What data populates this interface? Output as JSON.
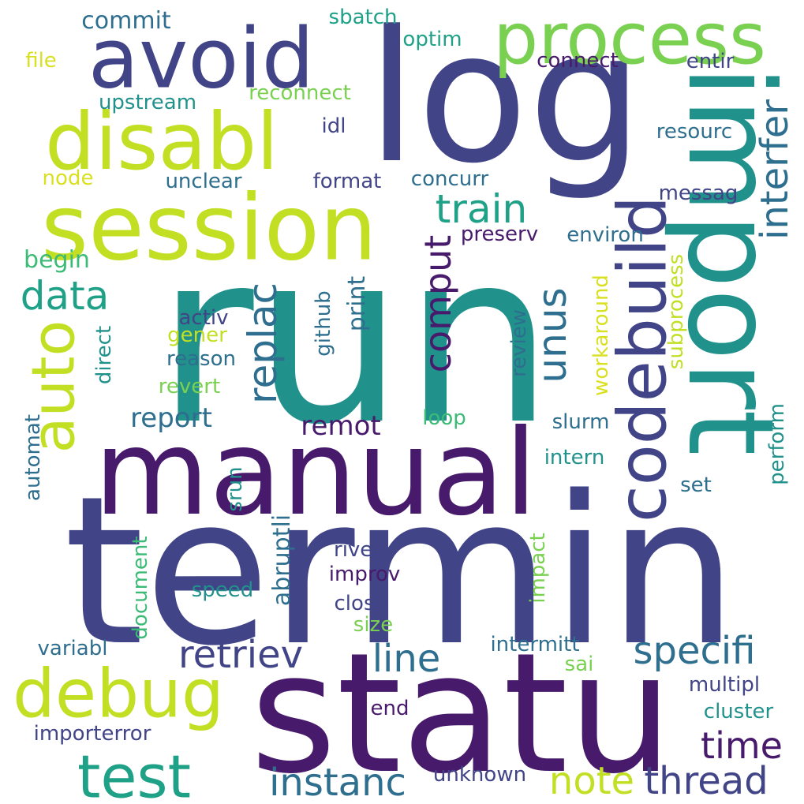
{
  "cloud": {
    "colors": {
      "background": "#ffffff",
      "dark_purple": "#481a6c",
      "indigo": "#414487",
      "slate_blue": "#3a548c",
      "steel_blue": "#2e6e8e",
      "teal": "#21918c",
      "sea_green": "#1fa187",
      "green": "#3bbb75",
      "light_green": "#7ad151",
      "lime": "#c2df23",
      "yellow": "#d9e021"
    },
    "words": [
      {
        "text": "run",
        "color": "#21918c",
        "size": 300,
        "rotate": 0
      },
      {
        "text": "termin",
        "color": "#414487",
        "size": 260,
        "rotate": 0
      },
      {
        "text": "log",
        "color": "#414487",
        "size": 230,
        "rotate": 0
      },
      {
        "text": "statu",
        "color": "#481a6c",
        "size": 210,
        "rotate": 0
      },
      {
        "text": "import",
        "color": "#21918c",
        "size": 150,
        "rotate": 90
      },
      {
        "text": "manual",
        "color": "#481a6c",
        "size": 150,
        "rotate": 0
      },
      {
        "text": "session",
        "color": "#c2df23",
        "size": 115,
        "rotate": 0
      },
      {
        "text": "avoid",
        "color": "#414487",
        "size": 105,
        "rotate": 0
      },
      {
        "text": "disabl",
        "color": "#c2df23",
        "size": 100,
        "rotate": 0
      },
      {
        "text": "process",
        "color": "#7ad151",
        "size": 90,
        "rotate": 0
      },
      {
        "text": "codebuild",
        "color": "#414487",
        "size": 85,
        "rotate": 270
      },
      {
        "text": "debug",
        "color": "#c2df23",
        "size": 85,
        "rotate": 0
      },
      {
        "text": "auto",
        "color": "#c2df23",
        "size": 75,
        "rotate": 270
      },
      {
        "text": "test",
        "color": "#1fa187",
        "size": 75,
        "rotate": 0
      },
      {
        "text": "replac",
        "color": "#2e6e8e",
        "size": 50,
        "rotate": 270
      },
      {
        "text": "unus",
        "color": "#2e6e8e",
        "size": 50,
        "rotate": 270
      },
      {
        "text": "comput",
        "color": "#481a6c",
        "size": 46,
        "rotate": 270
      },
      {
        "text": "interfer",
        "color": "#2e6e8e",
        "size": 48,
        "rotate": 270
      },
      {
        "text": "train",
        "color": "#1fa187",
        "size": 50,
        "rotate": 0
      },
      {
        "text": "data",
        "color": "#1fa187",
        "size": 50,
        "rotate": 0
      },
      {
        "text": "specifi",
        "color": "#2e6e8e",
        "size": 48,
        "rotate": 0
      },
      {
        "text": "retriev",
        "color": "#414487",
        "size": 48,
        "rotate": 0
      },
      {
        "text": "line",
        "color": "#2e6e8e",
        "size": 48,
        "rotate": 0
      },
      {
        "text": "instanc",
        "color": "#2e6e8e",
        "size": 48,
        "rotate": 0
      },
      {
        "text": "note",
        "color": "#c2df23",
        "size": 48,
        "rotate": 0
      },
      {
        "text": "thread",
        "color": "#414487",
        "size": 48,
        "rotate": 0
      },
      {
        "text": "time",
        "color": "#481a6c",
        "size": 46,
        "rotate": 0
      },
      {
        "text": "report",
        "color": "#2e6e8e",
        "size": 34,
        "rotate": 0
      },
      {
        "text": "remot",
        "color": "#481a6c",
        "size": 34,
        "rotate": 0
      },
      {
        "text": "abruptli",
        "color": "#2e6e8e",
        "size": 30,
        "rotate": 270
      },
      {
        "text": "print",
        "color": "#2e6e8e",
        "size": 30,
        "rotate": 270
      },
      {
        "text": "commit",
        "color": "#2e6e8e",
        "size": 30,
        "rotate": 0
      },
      {
        "text": "begin",
        "color": "#3bbb75",
        "size": 30,
        "rotate": 0
      },
      {
        "text": "sbatch",
        "color": "#1fa187",
        "size": 26,
        "rotate": 0
      },
      {
        "text": "optim",
        "color": "#1fa187",
        "size": 26,
        "rotate": 0
      },
      {
        "text": "connect",
        "color": "#481a6c",
        "size": 26,
        "rotate": 0
      },
      {
        "text": "entir",
        "color": "#414487",
        "size": 26,
        "rotate": 0
      },
      {
        "text": "file",
        "color": "#d9e021",
        "size": 26,
        "rotate": 0
      },
      {
        "text": "upstream",
        "color": "#21918c",
        "size": 26,
        "rotate": 0
      },
      {
        "text": "reconnect",
        "color": "#7ad151",
        "size": 26,
        "rotate": 0
      },
      {
        "text": "idl",
        "color": "#414487",
        "size": 26,
        "rotate": 0
      },
      {
        "text": "resourc",
        "color": "#2e6e8e",
        "size": 26,
        "rotate": 0
      },
      {
        "text": "node",
        "color": "#d9e021",
        "size": 26,
        "rotate": 0
      },
      {
        "text": "unclear",
        "color": "#2e6e8e",
        "size": 26,
        "rotate": 0
      },
      {
        "text": "format",
        "color": "#414487",
        "size": 26,
        "rotate": 0
      },
      {
        "text": "concurr",
        "color": "#2e6e8e",
        "size": 26,
        "rotate": 0
      },
      {
        "text": "messag",
        "color": "#414487",
        "size": 26,
        "rotate": 0
      },
      {
        "text": "preserv",
        "color": "#481a6c",
        "size": 26,
        "rotate": 0
      },
      {
        "text": "environ",
        "color": "#2e6e8e",
        "size": 26,
        "rotate": 0
      },
      {
        "text": "subprocess",
        "color": "#c2df23",
        "size": 26,
        "rotate": 270
      },
      {
        "text": "workaround",
        "color": "#d9e021",
        "size": 26,
        "rotate": 270
      },
      {
        "text": "activ",
        "color": "#414487",
        "size": 26,
        "rotate": 0
      },
      {
        "text": "gener",
        "color": "#c2df23",
        "size": 26,
        "rotate": 0
      },
      {
        "text": "reason",
        "color": "#2e6e8e",
        "size": 26,
        "rotate": 0
      },
      {
        "text": "revert",
        "color": "#7ad151",
        "size": 26,
        "rotate": 0
      },
      {
        "text": "direct",
        "color": "#21918c",
        "size": 26,
        "rotate": 270
      },
      {
        "text": "github",
        "color": "#2e6e8e",
        "size": 26,
        "rotate": 270
      },
      {
        "text": "review",
        "color": "#2e6e8e",
        "size": 26,
        "rotate": 270
      },
      {
        "text": "loop",
        "color": "#3bbb75",
        "size": 26,
        "rotate": 0
      },
      {
        "text": "slurm",
        "color": "#2e6e8e",
        "size": 26,
        "rotate": 0
      },
      {
        "text": "automat",
        "color": "#2e6e8e",
        "size": 26,
        "rotate": 270
      },
      {
        "text": "srun",
        "color": "#21918c",
        "size": 26,
        "rotate": 270
      },
      {
        "text": "perform",
        "color": "#21918c",
        "size": 26,
        "rotate": 270
      },
      {
        "text": "intern",
        "color": "#21918c",
        "size": 26,
        "rotate": 0
      },
      {
        "text": "set",
        "color": "#2e6e8e",
        "size": 26,
        "rotate": 0
      },
      {
        "text": "document",
        "color": "#3bbb75",
        "size": 26,
        "rotate": 270
      },
      {
        "text": "impact",
        "color": "#7ad151",
        "size": 26,
        "rotate": 270
      },
      {
        "text": "river",
        "color": "#414487",
        "size": 26,
        "rotate": 0
      },
      {
        "text": "improv",
        "color": "#481a6c",
        "size": 26,
        "rotate": 0
      },
      {
        "text": "speed",
        "color": "#21918c",
        "size": 26,
        "rotate": 0
      },
      {
        "text": "close",
        "color": "#414487",
        "size": 26,
        "rotate": 0
      },
      {
        "text": "size",
        "color": "#7ad151",
        "size": 26,
        "rotate": 0
      },
      {
        "text": "variabl",
        "color": "#2e6e8e",
        "size": 26,
        "rotate": 0
      },
      {
        "text": "intermitt",
        "color": "#2e6e8e",
        "size": 26,
        "rotate": 0
      },
      {
        "text": "sai",
        "color": "#7ad151",
        "size": 26,
        "rotate": 0
      },
      {
        "text": "multipl",
        "color": "#414487",
        "size": 26,
        "rotate": 0
      },
      {
        "text": "cluster",
        "color": "#21918c",
        "size": 26,
        "rotate": 0
      },
      {
        "text": "end",
        "color": "#481a6c",
        "size": 26,
        "rotate": 0
      },
      {
        "text": "importerror",
        "color": "#414487",
        "size": 26,
        "rotate": 0
      },
      {
        "text": "unknown",
        "color": "#414487",
        "size": 26,
        "rotate": 0
      }
    ]
  }
}
